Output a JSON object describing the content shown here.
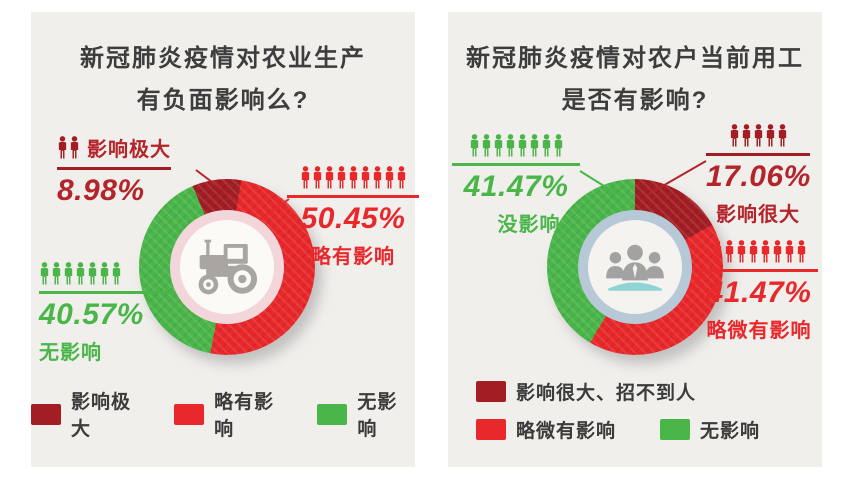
{
  "page": {
    "background": "#ffffff",
    "card_background": "#f0efec"
  },
  "colors": {
    "red": "#e8282b",
    "dark_red": "#a31e24",
    "text_dark_red": "#b4242b",
    "green": "#4ab64a",
    "title_text": "#3d3d3d",
    "legend_text": "#3b3b3b",
    "pink_ring": "#f3d6da",
    "blue_ring": "#b7c9d6",
    "icon_gray": "#a8a5a2",
    "table_teal": "#8fd3d5"
  },
  "chart_data": [
    {
      "type": "pie",
      "subtype": "donut",
      "title": "新冠肺炎疫情对农业生产有负面影响么?",
      "unit": "%",
      "rotation_deg": -23,
      "legend_position": "bottom",
      "center_icon": "tractor",
      "slices": [
        {
          "label": "影响极大",
          "value": 8.98,
          "color": "#a31e24"
        },
        {
          "label": "略有影响",
          "value": 50.45,
          "color": "#e8282b"
        },
        {
          "label": "无影响",
          "value": 40.57,
          "color": "#4ab64a"
        }
      ]
    },
    {
      "type": "pie",
      "subtype": "donut",
      "title": "新冠肺炎疫情对农户当前用工是否有影响?",
      "unit": "%",
      "rotation_deg": 0,
      "legend_position": "bottom",
      "center_icon": "people-group",
      "slices": [
        {
          "label": "影响很大、招不到人",
          "value": 17.06,
          "color": "#a31e24"
        },
        {
          "label": "略微有影响",
          "value": 41.47,
          "color": "#e8282b"
        },
        {
          "label": "无影响",
          "value": 41.47,
          "color": "#4ab64a"
        }
      ]
    }
  ],
  "charts": [
    {
      "title_lines": [
        "新冠肺炎疫情对农业生产",
        "有负面影响么?"
      ],
      "callouts": [
        {
          "pct": "8.98%",
          "label": "影响极大",
          "people": {
            "count": 2,
            "color": "dark_red"
          }
        },
        {
          "pct": "50.45%",
          "label": "略有影响",
          "people": {
            "count": 9,
            "color": "red"
          }
        },
        {
          "pct": "40.57%",
          "label": "无影响",
          "people": {
            "count": 7,
            "color": "green"
          }
        }
      ],
      "legend": [
        {
          "label": "影响极大",
          "color": "dark_red"
        },
        {
          "label": "略有影响",
          "color": "red"
        },
        {
          "label": "无影响",
          "color": "green"
        }
      ]
    },
    {
      "title_lines": [
        "新冠肺炎疫情对农户当前用工",
        "是否有影响?"
      ],
      "callouts": [
        {
          "pct": "41.47%",
          "label": "没影响",
          "people": {
            "count": 8,
            "color": "green"
          }
        },
        {
          "pct": "17.06%",
          "label": "影响很大",
          "people": {
            "count": 5,
            "color": "dark_red"
          }
        },
        {
          "pct": "41.47%",
          "label": "略微有影响",
          "people": {
            "count": 8,
            "color": "red"
          }
        }
      ],
      "legend": [
        {
          "label": "影响很大、招不到人",
          "color": "dark_red"
        },
        {
          "label": "略微有影响",
          "color": "red"
        },
        {
          "label": "无影响",
          "color": "green"
        }
      ]
    }
  ]
}
